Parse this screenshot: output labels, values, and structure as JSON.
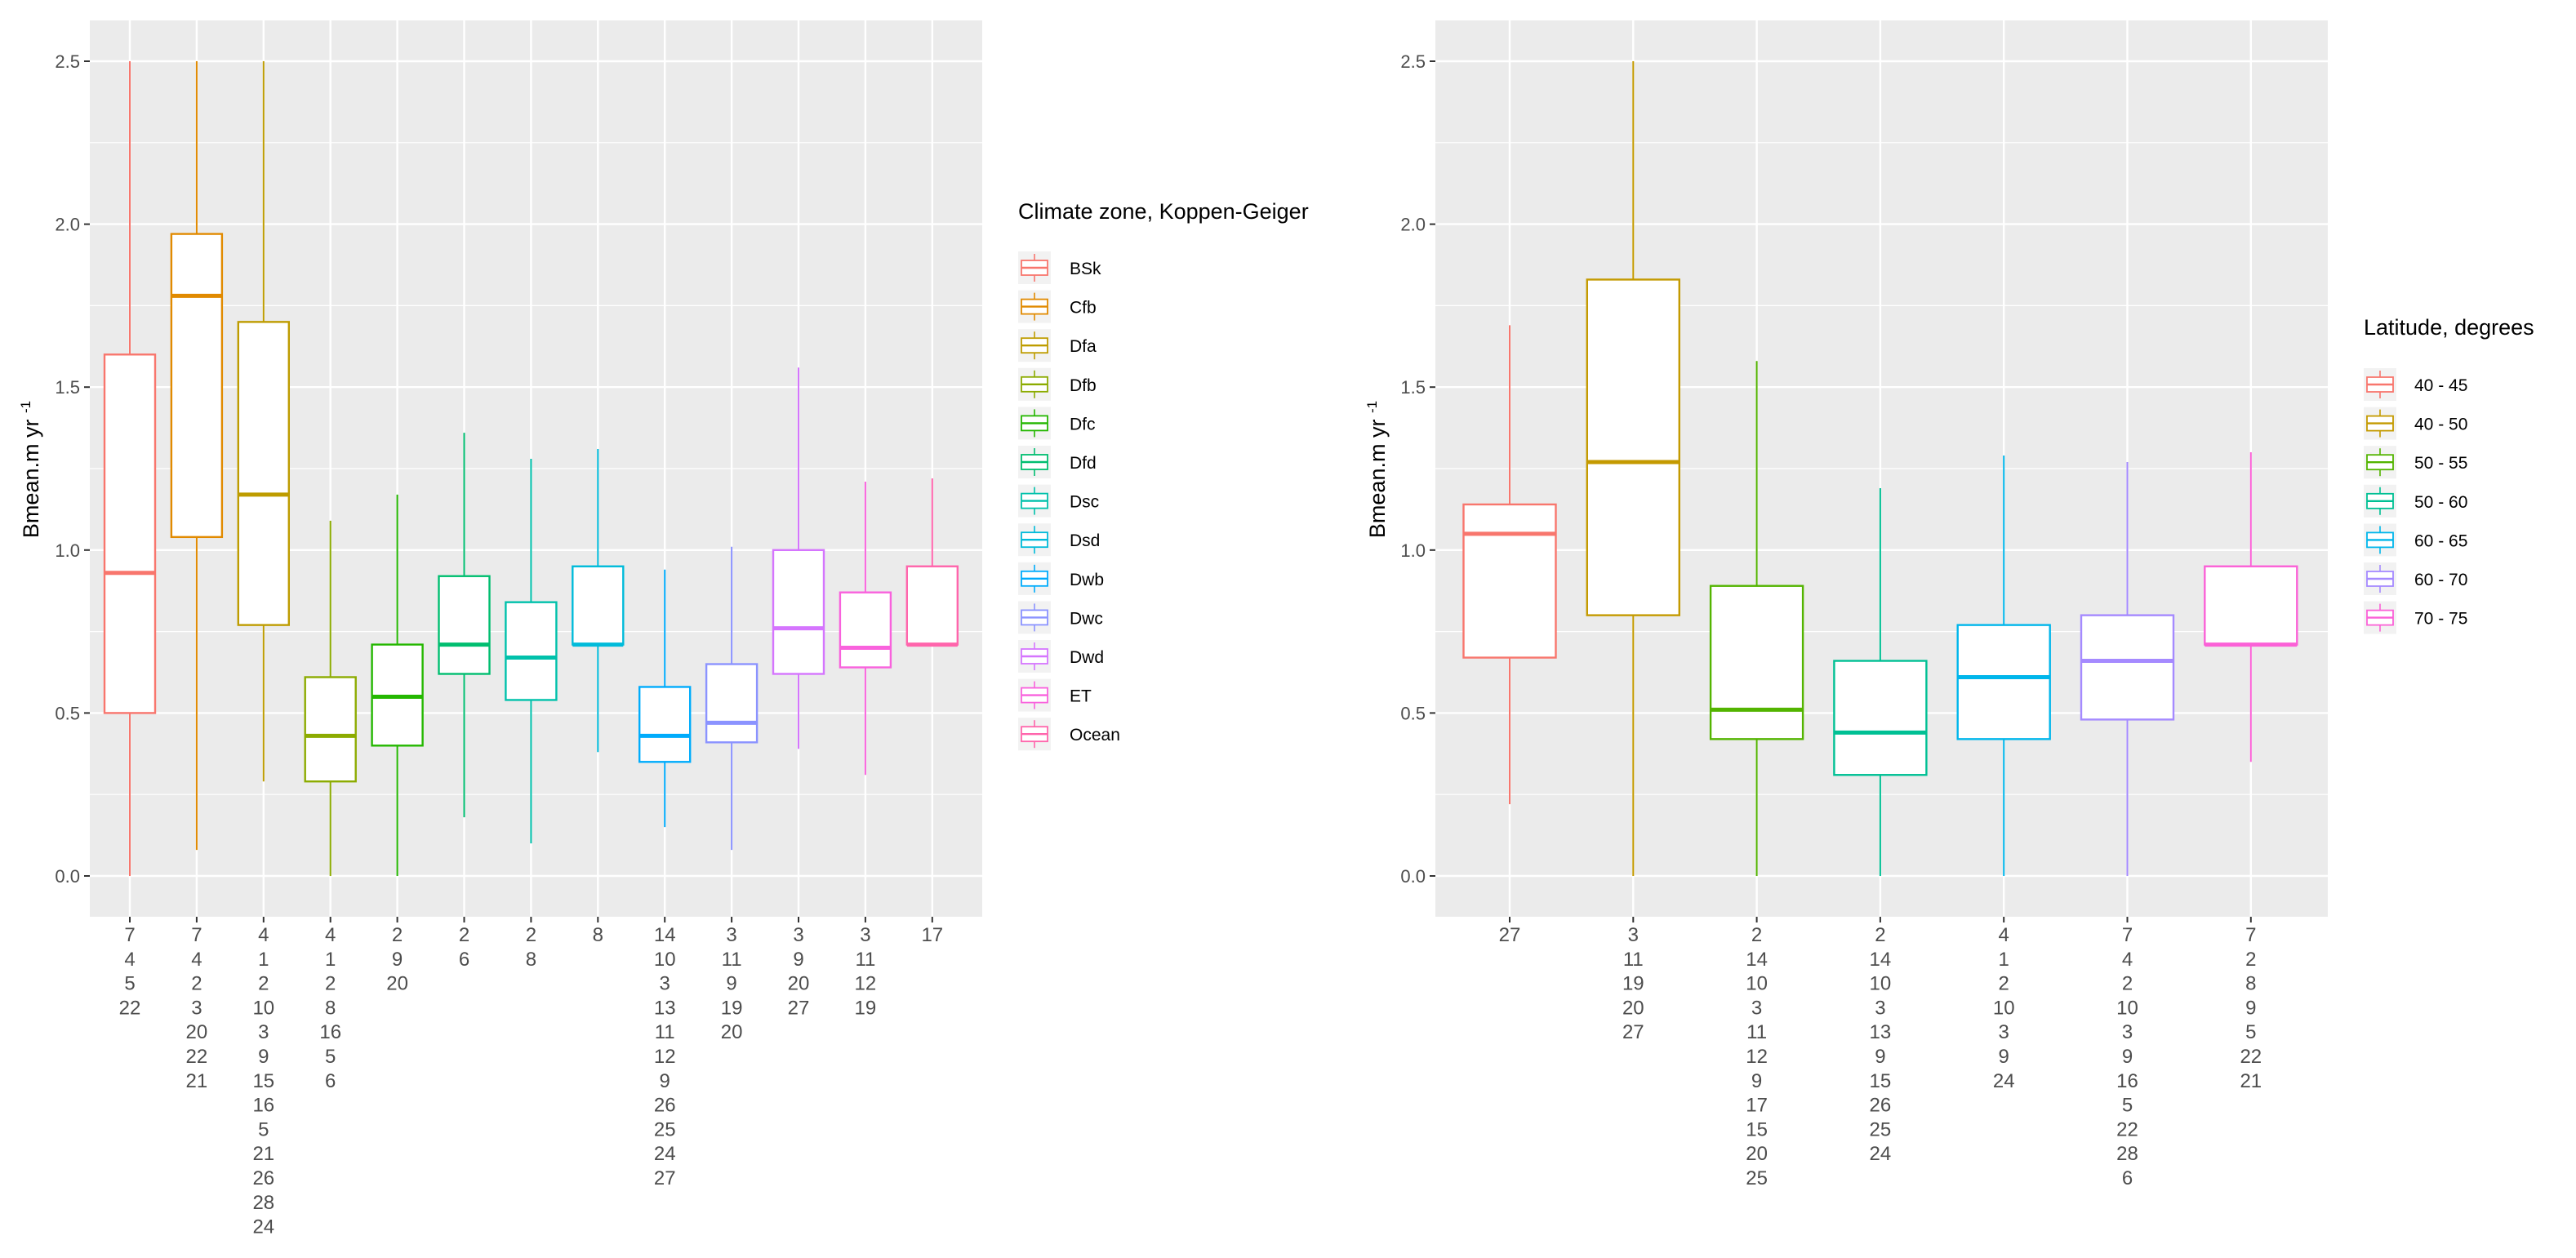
{
  "chart_data": [
    {
      "type": "box",
      "ylabel": "Bmean.m yr",
      "ylabel_sup": "-1",
      "ylim": [
        -0.12,
        2.63
      ],
      "yticks": [
        "0.0",
        "0.5",
        "1.0",
        "1.5",
        "2.0",
        "2.5"
      ],
      "ytick_values": [
        0,
        0.5,
        1.0,
        1.5,
        2.0,
        2.5
      ],
      "legend": {
        "title": "Climate zone, Koppen-Geiger",
        "placement": "right"
      },
      "boxes": [
        {
          "name": "BSk",
          "color": "#F8766D",
          "whisker_low": 0.0,
          "q1": 0.5,
          "median": 0.93,
          "q3": 1.6,
          "whisker_high": 2.5,
          "x_labels": [
            "7",
            "4",
            "5",
            "22"
          ]
        },
        {
          "name": "Cfb",
          "color": "#E18A00",
          "whisker_low": 0.08,
          "q1": 1.04,
          "median": 1.78,
          "q3": 1.97,
          "whisker_high": 2.5,
          "x_labels": [
            "7",
            "4",
            "2",
            "3",
            "20",
            "22",
            "21"
          ]
        },
        {
          "name": "Dfa",
          "color": "#BE9C00",
          "whisker_low": 0.29,
          "q1": 0.77,
          "median": 1.17,
          "q3": 1.7,
          "whisker_high": 2.5,
          "x_labels": [
            "4",
            "1",
            "2",
            "10",
            "3",
            "9",
            "15",
            "16",
            "5",
            "21",
            "26",
            "28",
            "24"
          ]
        },
        {
          "name": "Dfb",
          "color": "#8CAB00",
          "whisker_low": 0.0,
          "q1": 0.29,
          "median": 0.43,
          "q3": 0.61,
          "whisker_high": 1.09,
          "x_labels": [
            "4",
            "1",
            "2",
            "8",
            "16",
            "5",
            "6"
          ]
        },
        {
          "name": "Dfc",
          "color": "#24B700",
          "whisker_low": 0.0,
          "q1": 0.4,
          "median": 0.55,
          "q3": 0.71,
          "whisker_high": 1.17,
          "x_labels": [
            "2",
            "9",
            "20"
          ]
        },
        {
          "name": "Dfd",
          "color": "#00BE70",
          "whisker_low": 0.18,
          "q1": 0.62,
          "median": 0.71,
          "q3": 0.92,
          "whisker_high": 1.36,
          "x_labels": [
            "2",
            "6"
          ]
        },
        {
          "name": "Dsc",
          "color": "#00C1AB",
          "whisker_low": 0.1,
          "q1": 0.54,
          "median": 0.67,
          "q3": 0.84,
          "whisker_high": 1.28,
          "x_labels": [
            "2",
            "8"
          ]
        },
        {
          "name": "Dsd",
          "color": "#00BBDA",
          "whisker_low": 0.38,
          "q1": 0.71,
          "median": 0.71,
          "q3": 0.95,
          "whisker_high": 1.31,
          "x_labels": [
            "8"
          ]
        },
        {
          "name": "Dwb",
          "color": "#00ACFC",
          "whisker_low": 0.15,
          "q1": 0.35,
          "median": 0.43,
          "q3": 0.58,
          "whisker_high": 0.94,
          "x_labels": [
            "14",
            "10",
            "3",
            "13",
            "11",
            "12",
            "9",
            "26",
            "25",
            "24",
            "27"
          ]
        },
        {
          "name": "Dwc",
          "color": "#8B93FF",
          "whisker_low": 0.08,
          "q1": 0.41,
          "median": 0.47,
          "q3": 0.65,
          "whisker_high": 1.01,
          "x_labels": [
            "3",
            "11",
            "9",
            "19",
            "20"
          ]
        },
        {
          "name": "Dwd",
          "color": "#D575FE",
          "whisker_low": 0.39,
          "q1": 0.62,
          "median": 0.76,
          "q3": 1.0,
          "whisker_high": 1.56,
          "x_labels": [
            "3",
            "9",
            "20",
            "27"
          ]
        },
        {
          "name": "ET",
          "color": "#F962DD",
          "whisker_low": 0.31,
          "q1": 0.64,
          "median": 0.7,
          "q3": 0.87,
          "whisker_high": 1.21,
          "x_labels": [
            "3",
            "11",
            "12",
            "19"
          ]
        },
        {
          "name": "Ocean",
          "color": "#FF65AC",
          "whisker_low": 0.71,
          "q1": 0.71,
          "median": 0.71,
          "q3": 0.95,
          "whisker_high": 1.22,
          "x_labels": [
            "17"
          ]
        }
      ]
    },
    {
      "type": "box",
      "ylabel": "Bmean.m yr",
      "ylabel_sup": "-1",
      "ylim": [
        -0.12,
        2.63
      ],
      "yticks": [
        "0.0",
        "0.5",
        "1.0",
        "1.5",
        "2.0",
        "2.5"
      ],
      "ytick_values": [
        0,
        0.5,
        1.0,
        1.5,
        2.0,
        2.5
      ],
      "legend": {
        "title": "Latitude, degrees",
        "placement": "right"
      },
      "boxes": [
        {
          "name": "40 - 45",
          "color": "#F8766D",
          "whisker_low": 0.22,
          "q1": 0.67,
          "median": 1.05,
          "q3": 1.14,
          "whisker_high": 1.69,
          "x_labels": [
            "27"
          ]
        },
        {
          "name": "40 - 50",
          "color": "#C49A00",
          "whisker_low": 0.0,
          "q1": 0.8,
          "median": 1.27,
          "q3": 1.83,
          "whisker_high": 2.5,
          "x_labels": [
            "3",
            "11",
            "19",
            "20",
            "27"
          ]
        },
        {
          "name": "50 - 55",
          "color": "#53B400",
          "whisker_low": 0.0,
          "q1": 0.42,
          "median": 0.51,
          "q3": 0.89,
          "whisker_high": 1.58,
          "x_labels": [
            "2",
            "14",
            "10",
            "3",
            "11",
            "12",
            "9",
            "17",
            "15",
            "20",
            "25"
          ]
        },
        {
          "name": "50 - 60",
          "color": "#00C094",
          "whisker_low": 0.0,
          "q1": 0.31,
          "median": 0.44,
          "q3": 0.66,
          "whisker_high": 1.19,
          "x_labels": [
            "2",
            "14",
            "10",
            "3",
            "13",
            "9",
            "15",
            "26",
            "25",
            "24"
          ]
        },
        {
          "name": "60 - 65",
          "color": "#00B6EB",
          "whisker_low": 0.0,
          "q1": 0.42,
          "median": 0.61,
          "q3": 0.77,
          "whisker_high": 1.29,
          "x_labels": [
            "4",
            "1",
            "2",
            "10",
            "3",
            "9",
            "24"
          ]
        },
        {
          "name": "60 - 70",
          "color": "#A58AFF",
          "whisker_low": 0.0,
          "q1": 0.48,
          "median": 0.66,
          "q3": 0.8,
          "whisker_high": 1.27,
          "x_labels": [
            "7",
            "4",
            "2",
            "10",
            "3",
            "9",
            "16",
            "5",
            "22",
            "28",
            "6"
          ]
        },
        {
          "name": "70 - 75",
          "color": "#FB61D7",
          "whisker_low": 0.35,
          "q1": 0.71,
          "median": 0.71,
          "q3": 0.95,
          "whisker_high": 1.3,
          "x_labels": [
            "7",
            "2",
            "8",
            "9",
            "5",
            "22",
            "21"
          ]
        }
      ]
    }
  ]
}
